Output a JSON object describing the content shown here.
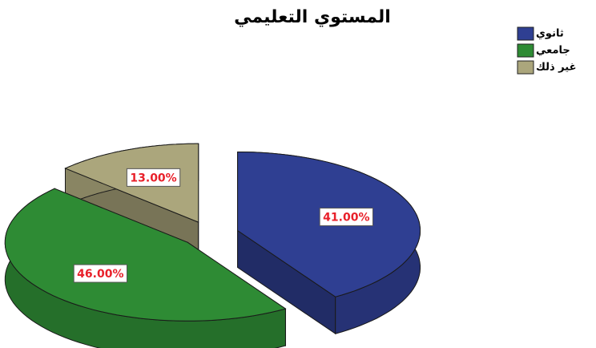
{
  "chart_data": {
    "type": "pie",
    "title": "المستوي التعليمي",
    "categories": [
      "ثانوي",
      "جامعي",
      "غير ذلك"
    ],
    "values": [
      41,
      46,
      13
    ],
    "value_labels": [
      "41.00%",
      "46.00%",
      "13.00%"
    ],
    "colors": [
      "#2f3f92",
      "#2e8b34",
      "#aba67c"
    ]
  }
}
